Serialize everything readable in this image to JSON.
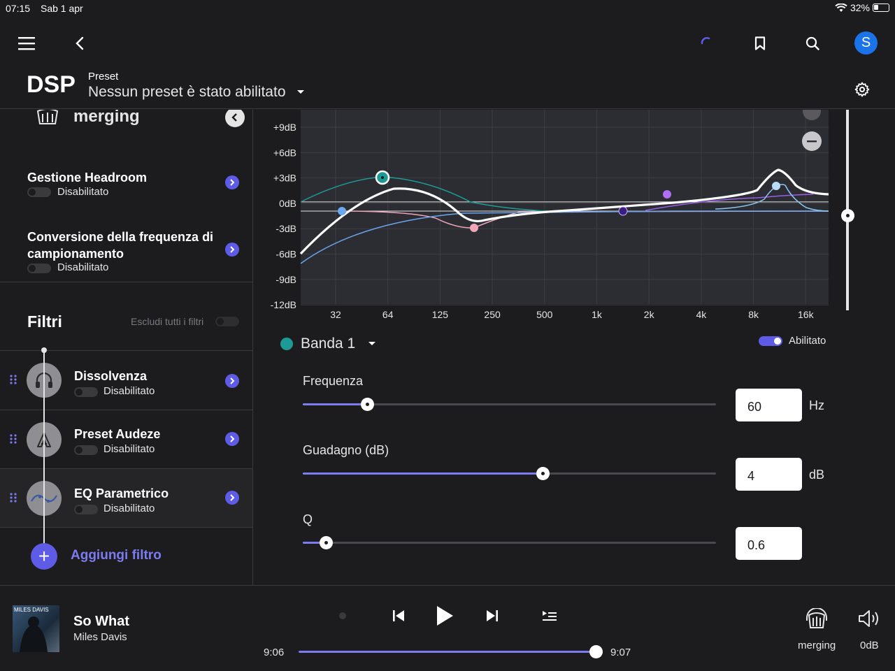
{
  "statusbar": {
    "time": "07:15",
    "date": "Sab 1 apr",
    "battery": "32%"
  },
  "topbar": {
    "title": "DSP",
    "preset_label": "Preset",
    "preset_value": "Nessun preset è stato abilitato",
    "avatar_letter": "S"
  },
  "device": {
    "name": "merging"
  },
  "settings": [
    {
      "title": "Gestione Headroom",
      "status": "Disabilitato"
    },
    {
      "title": "Conversione della frequenza di campionamento",
      "status": "Disabilitato"
    }
  ],
  "filters": {
    "title": "Filtri",
    "bypass_label": "Escludi tutti i filtri",
    "items": [
      {
        "title": "Dissolvenza",
        "status": "Disabilitato",
        "icon": "headphones-icon"
      },
      {
        "title": "Preset Audeze",
        "status": "Disabilitato",
        "icon": "audeze-logo-icon"
      },
      {
        "title": "EQ Parametrico",
        "status": "Disabilitato",
        "icon": "eq-curve-icon"
      }
    ],
    "add_label": "Aggiungi filtro"
  },
  "eq": {
    "y_ticks": [
      "+9dB",
      "+6dB",
      "+3dB",
      "0dB",
      "-3dB",
      "-6dB",
      "-9dB",
      "-12dB"
    ],
    "x_ticks": [
      "32",
      "64",
      "125",
      "250",
      "500",
      "1k",
      "2k",
      "4k",
      "8k",
      "16k"
    ],
    "band": {
      "name": "Banda 1",
      "enabled_label": "Abilitato",
      "color": "#1e9a96"
    },
    "params": [
      {
        "label": "Frequenza",
        "value": "60",
        "unit": "Hz",
        "fill": 0.155
      },
      {
        "label": "Guadagno (dB)",
        "value": "4",
        "unit": "dB",
        "fill": 0.58
      },
      {
        "label": "Q",
        "value": "0.6",
        "unit": "",
        "fill": 0.055
      }
    ]
  },
  "player": {
    "album_text": "MILES DAVIS",
    "song": "So What",
    "artist": "Miles Davis",
    "elapsed": "9:06",
    "total": "9:07",
    "output_device": "merging",
    "volume": "0dB",
    "progress": 0.99
  }
}
